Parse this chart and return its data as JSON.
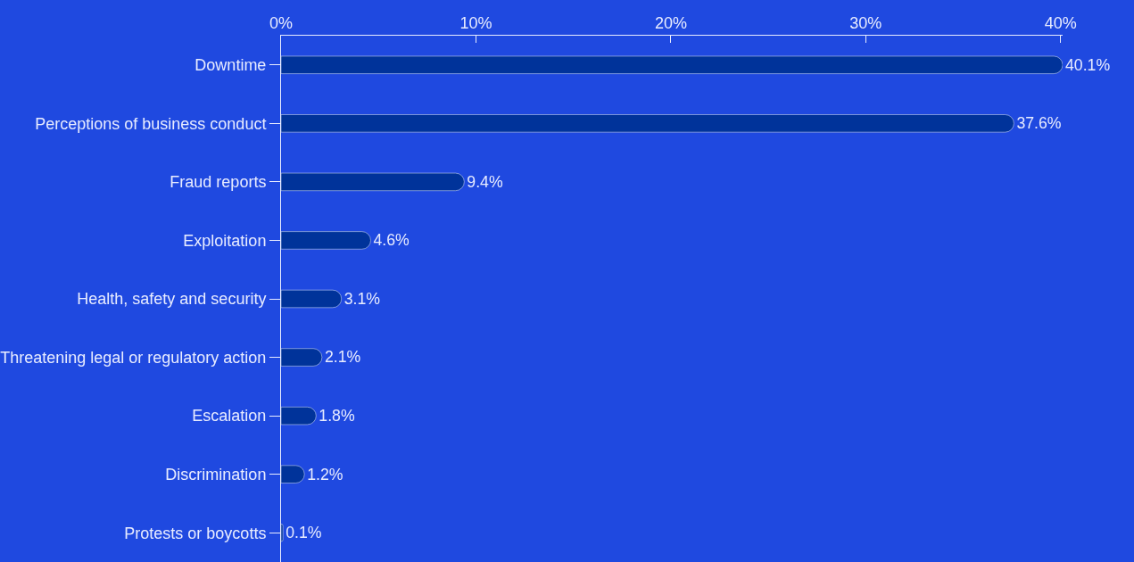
{
  "chart_data": {
    "type": "bar",
    "orientation": "horizontal",
    "categories": [
      "Downtime",
      "Perceptions of business conduct",
      "Fraud reports",
      "Exploitation",
      "Health, safety and security",
      "Threatening legal or regulatory action",
      "Escalation",
      "Discrimination",
      "Protests or boycotts"
    ],
    "values": [
      40.1,
      37.6,
      9.4,
      4.6,
      3.1,
      2.1,
      1.8,
      1.2,
      0.1
    ],
    "value_labels": [
      "40.1%",
      "37.6%",
      "9.4%",
      "4.6%",
      "3.1%",
      "2.1%",
      "1.8%",
      "1.2%",
      "0.1%"
    ],
    "color": "#00339a",
    "xlim": [
      0,
      40.1
    ],
    "xticks": [
      {
        "value": 0,
        "label": "0%"
      },
      {
        "value": 10,
        "label": "10%"
      },
      {
        "value": 20,
        "label": "20%"
      },
      {
        "value": 30,
        "label": "30%"
      },
      {
        "value": 40,
        "label": "40%"
      }
    ],
    "grid": false,
    "legend": false
  }
}
